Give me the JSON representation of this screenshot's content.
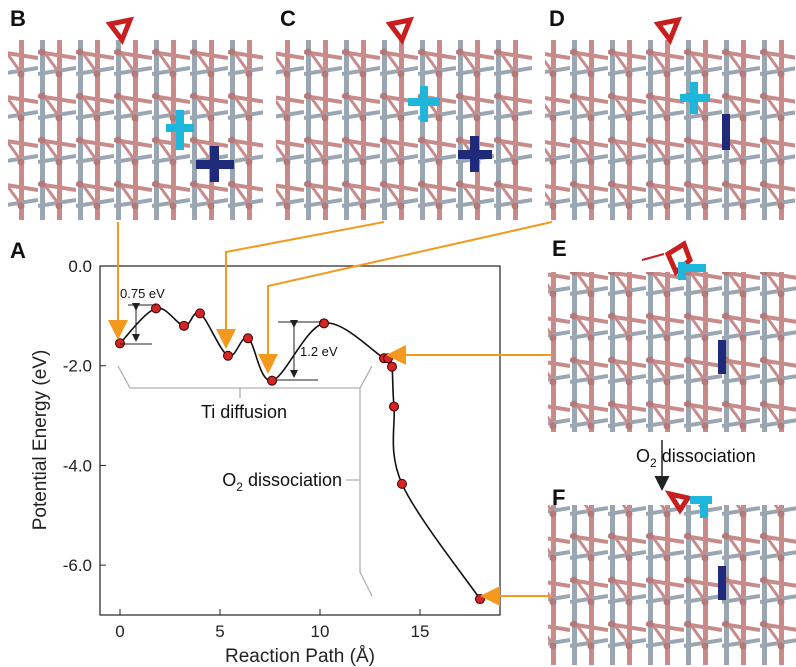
{
  "panels": {
    "A": "A",
    "B": "B",
    "C": "C",
    "D": "D",
    "E": "E",
    "F": "F"
  },
  "colors": {
    "bond_pink": "#c98a8a",
    "bond_gray": "#9aa6b2",
    "ti_cyan": "#1fb6dc",
    "ti_navy": "#1f2a7a",
    "oxygen_red": "#c81e1e",
    "arrow_orange": "#f39a1e",
    "gray_bracket": "#b0b0b0",
    "point_red": "#d62424"
  },
  "annotations": {
    "barrier_1": "0.75 eV",
    "barrier_2": "1.2 eV",
    "ti_diffusion": "Ti diffusion",
    "o2_dissociation_prefix": "O",
    "o2_dissociation_sub": "2",
    "o2_dissociation_suffix": " dissociation",
    "ef_arrow_prefix": "O",
    "ef_arrow_sub": "2",
    "ef_arrow_suffix": " dissociation"
  },
  "chart_data": {
    "type": "line",
    "xlabel": "Reaction Path  (Å)",
    "ylabel": "Potential Energy  (eV)",
    "xlim": [
      -1.0,
      19.0
    ],
    "ylim": [
      -7.0,
      0.0
    ],
    "xticks": [
      0,
      5,
      10,
      15
    ],
    "yticks": [
      0.0,
      -2.0,
      -4.0,
      -6.0
    ],
    "ytick_labels": [
      "0.0",
      "-2.0",
      "-4.0",
      "-6.0"
    ],
    "series": [
      {
        "x": [
          0.0,
          1.8,
          3.2,
          4.0,
          5.4,
          6.4,
          7.6,
          10.2,
          13.2,
          13.4,
          13.6,
          13.7,
          14.1,
          18.0
        ],
        "y": [
          -1.55,
          -0.85,
          -1.2,
          -0.95,
          -1.8,
          -1.45,
          -2.3,
          -1.15,
          -1.85,
          -1.85,
          -2.02,
          -2.82,
          -4.37,
          -6.68
        ]
      }
    ]
  }
}
